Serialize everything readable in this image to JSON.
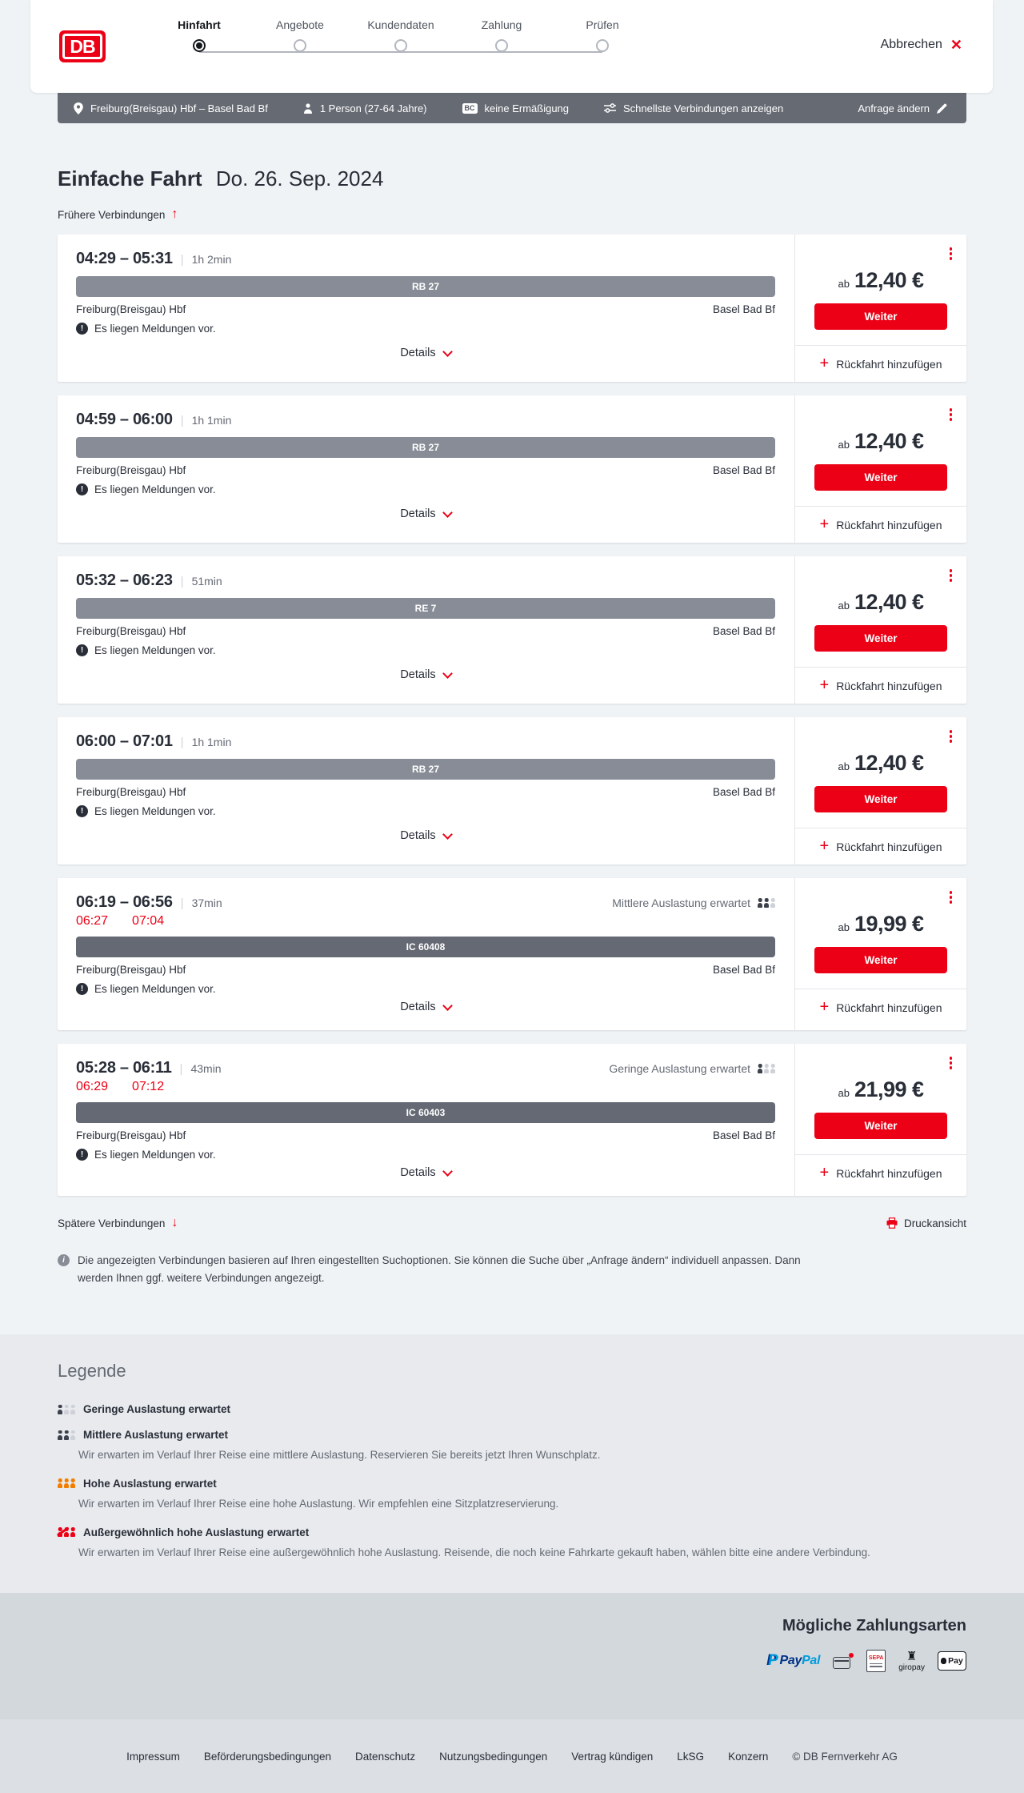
{
  "header": {
    "logo_text": "DB",
    "cancel_label": "Abbrechen",
    "steps": [
      {
        "label": "Hinfahrt",
        "state": "active"
      },
      {
        "label": "Angebote"
      },
      {
        "label": "Kundendaten"
      },
      {
        "label": "Zahlung"
      },
      {
        "label": "Prüfen"
      }
    ]
  },
  "search_summary": {
    "route": "Freiburg(Breisgau) Hbf – Basel Bad Bf",
    "passengers": "1 Person (27-64 Jahre)",
    "bahncard_badge": "BC",
    "discount": "keine Ermäßigung",
    "fastest_connections": "Schnellste Verbindungen anzeigen",
    "modify_request": "Anfrage ändern"
  },
  "results": {
    "title": "Einfache Fahrt",
    "date": "Do. 26. Sep. 2024",
    "earlier_label": "Frühere Verbindungen",
    "later_label": "Spätere Verbindungen",
    "print_label": "Druckansicht",
    "info_note": "Die angezeigten Verbindungen basieren auf Ihren eingestellten Suchoptionen. Sie können die Suche über „Anfrage ändern“ individuell anpassen. Dann werden Ihnen ggf. weitere Verbindungen angezeigt."
  },
  "connections": [
    {
      "times": "04:29 – 05:31",
      "duration": "1h 2min",
      "train": "RB 27",
      "from": "Freiburg(Breisgau) Hbf",
      "to": "Basel Bad Bf",
      "notice": "Es liegen Meldungen vor.",
      "details_label": "Details",
      "price_prefix": "ab",
      "price": "12,40 €",
      "cta": "Weiter",
      "add_return_label": "Rückfahrt hinzufügen"
    },
    {
      "times": "04:59 – 06:00",
      "duration": "1h 1min",
      "train": "RB 27",
      "from": "Freiburg(Breisgau) Hbf",
      "to": "Basel Bad Bf",
      "notice": "Es liegen Meldungen vor.",
      "details_label": "Details",
      "price_prefix": "ab",
      "price": "12,40 €",
      "cta": "Weiter",
      "add_return_label": "Rückfahrt hinzufügen"
    },
    {
      "times": "05:32 – 06:23",
      "duration": "51min",
      "train": "RE 7",
      "from": "Freiburg(Breisgau) Hbf",
      "to": "Basel Bad Bf",
      "notice": "Es liegen Meldungen vor.",
      "details_label": "Details",
      "price_prefix": "ab",
      "price": "12,40 €",
      "cta": "Weiter",
      "add_return_label": "Rückfahrt hinzufügen"
    },
    {
      "times": "06:00 – 07:01",
      "duration": "1h 1min",
      "train": "RB 27",
      "from": "Freiburg(Breisgau) Hbf",
      "to": "Basel Bad Bf",
      "notice": "Es liegen Meldungen vor.",
      "details_label": "Details",
      "price_prefix": "ab",
      "price": "12,40 €",
      "cta": "Weiter",
      "add_return_label": "Rückfahrt hinzufügen"
    },
    {
      "times": "06:19 – 06:56",
      "duration": "37min",
      "train": "IC 60408",
      "card_class": "delayed",
      "bar_class": "dark",
      "delay": {
        "depart": "06:27",
        "arrive": "07:04"
      },
      "occupancy": {
        "label": "Mittlere Auslastung erwartet",
        "icon_class": "occ-medium"
      },
      "from": "Freiburg(Breisgau) Hbf",
      "to": "Basel Bad Bf",
      "notice": "Es liegen Meldungen vor.",
      "details_label": "Details",
      "price_prefix": "ab",
      "price": "19,99 €",
      "cta": "Weiter",
      "add_return_label": "Rückfahrt hinzufügen"
    },
    {
      "times": "05:28 – 06:11",
      "duration": "43min",
      "train": "IC 60403",
      "card_class": "delayed",
      "bar_class": "dark",
      "delay": {
        "depart": "06:29",
        "arrive": "07:12"
      },
      "occupancy": {
        "label": "Geringe Auslastung erwartet",
        "icon_class": "occ-low"
      },
      "from": "Freiburg(Breisgau) Hbf",
      "to": "Basel Bad Bf",
      "notice": "Es liegen Meldungen vor.",
      "details_label": "Details",
      "price_prefix": "ab",
      "price": "21,99 €",
      "cta": "Weiter",
      "add_return_label": "Rückfahrt hinzufügen"
    }
  ],
  "legend": {
    "title": "Legende",
    "items": [
      {
        "label": "Geringe Auslastung erwartet",
        "icon_class": "occ-low"
      },
      {
        "label": "Mittlere Auslastung erwartet",
        "icon_class": "occ-medium",
        "desc": "Wir erwarten im Verlauf Ihrer Reise eine mittlere Auslastung. Reservieren Sie bereits jetzt Ihren Wunschplatz."
      },
      {
        "label": "Hohe Auslastung erwartet",
        "icon_class": "occ-high",
        "desc": "Wir erwarten im Verlauf Ihrer Reise eine hohe Auslastung. Wir empfehlen eine Sitzplatzreservierung."
      },
      {
        "label": "Außergewöhnlich hohe Auslastung erwartet",
        "icon_class": "occ-exceptional",
        "desc": "Wir erwarten im Verlauf Ihrer Reise eine außergewöhnlich hohe Auslastung. Reisende, die noch keine Fahrkarte gekauft haben, wählen bitte eine andere Verbindung."
      }
    ]
  },
  "payment": {
    "title": "Mögliche Zahlungsarten",
    "methods": [
      "PayPal",
      "Kreditkarte",
      "SEPA-Lastschrift",
      "giropay",
      "Apple Pay"
    ],
    "icons": {
      "paypal_p": "P",
      "paypal_pay": "Pay",
      "paypal_pal": "Pal",
      "sepa": "SEPA",
      "giropay": "giropay",
      "applepay": "Pay"
    }
  },
  "footer": {
    "links": [
      "Impressum",
      "Beförderungsbedingungen",
      "Datenschutz",
      "Nutzungsbedingungen",
      "Vertrag kündigen",
      "LkSG",
      "Konzern"
    ],
    "copyright": "© DB Fernverkehr AG"
  },
  "colors": {
    "brand_red": "#ec0016",
    "occupancy_high_orange": "#f27e00",
    "train_bar_gray": "#878c96",
    "train_bar_dark": "#646973"
  }
}
